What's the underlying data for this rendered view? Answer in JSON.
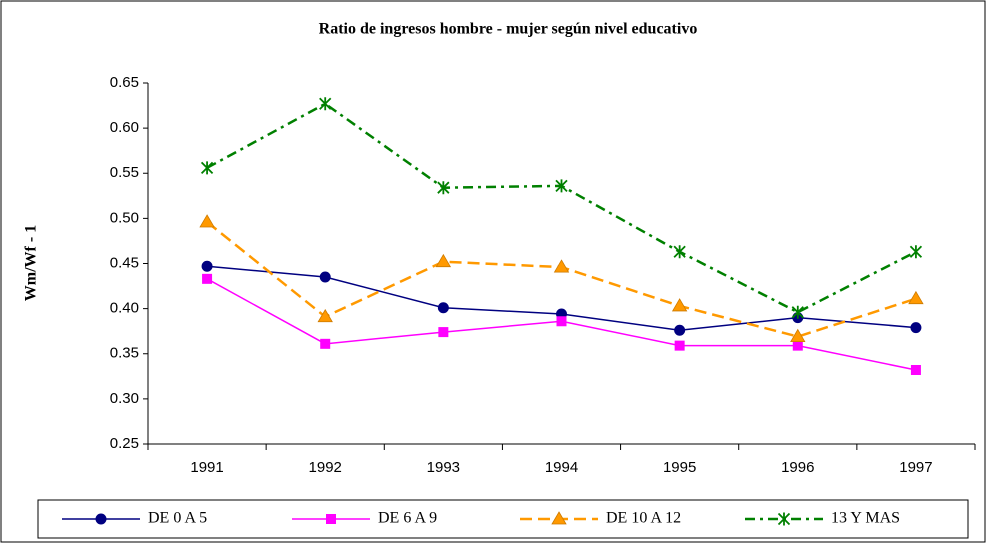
{
  "chart_data": {
    "type": "line",
    "title": "Ratio de ingresos hombre - mujer según nivel educativo",
    "y_label": "Wm/Wf - 1",
    "categories": [
      "1991",
      "1992",
      "1993",
      "1994",
      "1995",
      "1996",
      "1997"
    ],
    "ylim": [
      0.25,
      0.65
    ],
    "yticks": [
      0.25,
      {
        "value": 0.3,
        "label": "0.30"
      },
      0.35,
      {
        "value": 0.4,
        "label": "0.40"
      },
      0.45,
      {
        "value": 0.5,
        "label": "0.50"
      },
      0.55,
      {
        "value": 0.6,
        "label": "0.60"
      },
      0.65
    ],
    "grid": false,
    "legend": "bottom",
    "series": [
      {
        "name": "DE 0 A 5",
        "color": "#000080",
        "marker": "circle",
        "dash": "solid",
        "values": [
          0.447,
          0.435,
          0.401,
          0.394,
          0.376,
          0.39,
          0.379
        ]
      },
      {
        "name": "DE 6 A 9",
        "color": "#ff00ff",
        "marker": "square",
        "dash": "solid",
        "values": [
          0.433,
          0.361,
          0.374,
          0.386,
          0.359,
          0.359,
          0.332
        ]
      },
      {
        "name": "DE 10 A 12",
        "color": "#ff9900",
        "marker": "triangle",
        "dash": "dashed",
        "values": [
          0.496,
          0.391,
          0.452,
          0.446,
          0.403,
          0.369,
          0.411
        ]
      },
      {
        "name": "13 Y MAS",
        "color": "#008000",
        "marker": "star",
        "dash": "dashdot",
        "values": [
          0.556,
          0.627,
          0.534,
          0.536,
          0.463,
          0.396,
          0.463
        ]
      }
    ]
  }
}
